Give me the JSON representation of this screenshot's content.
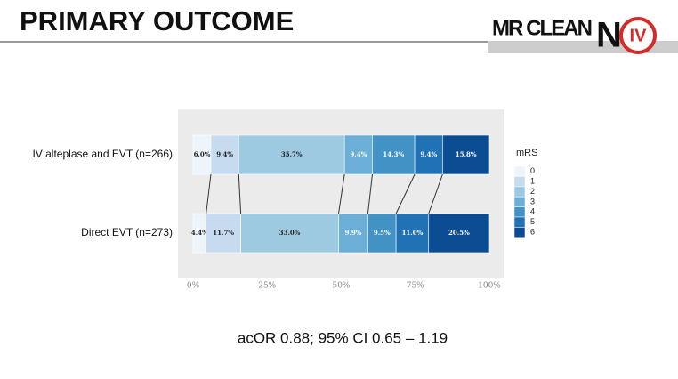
{
  "slide": {
    "title": "PRIMARY OUTCOME",
    "logo_text": "MR CLEAN",
    "logo_n": "N",
    "logo_iv": "IV",
    "footer": "acOR 0.88; 95% CI 0.65 – 1.19"
  },
  "chart_data": {
    "type": "bar",
    "orientation": "horizontal",
    "stacked": true,
    "categories": [
      "IV alteplase and EVT (n=266)",
      "Direct EVT (n=273)"
    ],
    "legend_title": "mRS",
    "legend_position": "right",
    "series": [
      {
        "name": "0",
        "color": "#eef4fb",
        "values": [
          6.0,
          4.4
        ],
        "value_labels": [
          "6.0%",
          "4.4%"
        ]
      },
      {
        "name": "1",
        "color": "#c6dbef",
        "values": [
          9.4,
          11.7
        ],
        "value_labels": [
          "9.4%",
          "11.7%"
        ]
      },
      {
        "name": "2",
        "color": "#9ecae1",
        "values": [
          35.7,
          33.0
        ],
        "value_labels": [
          "35.7%",
          "33.0%"
        ]
      },
      {
        "name": "3",
        "color": "#6baed6",
        "values": [
          9.4,
          9.9
        ],
        "value_labels": [
          "9.4%",
          "9.9%"
        ]
      },
      {
        "name": "4",
        "color": "#4292c6",
        "values": [
          14.3,
          9.5
        ],
        "value_labels": [
          "14.3%",
          "9.5%"
        ]
      },
      {
        "name": "5",
        "color": "#2171b5",
        "values": [
          9.4,
          11.0
        ],
        "value_labels": [
          "9.4%",
          "11.0%"
        ]
      },
      {
        "name": "6",
        "color": "#0b4c92",
        "values": [
          15.8,
          20.5
        ],
        "value_labels": [
          "15.8%",
          "20.5%"
        ]
      }
    ],
    "xlim": [
      0,
      100
    ],
    "xticks": [
      {
        "value": 0,
        "label": "0%"
      },
      {
        "value": 25,
        "label": "25%"
      },
      {
        "value": 50,
        "label": "50%"
      },
      {
        "value": 75,
        "label": "75%"
      },
      {
        "value": 100,
        "label": "100%"
      }
    ]
  }
}
